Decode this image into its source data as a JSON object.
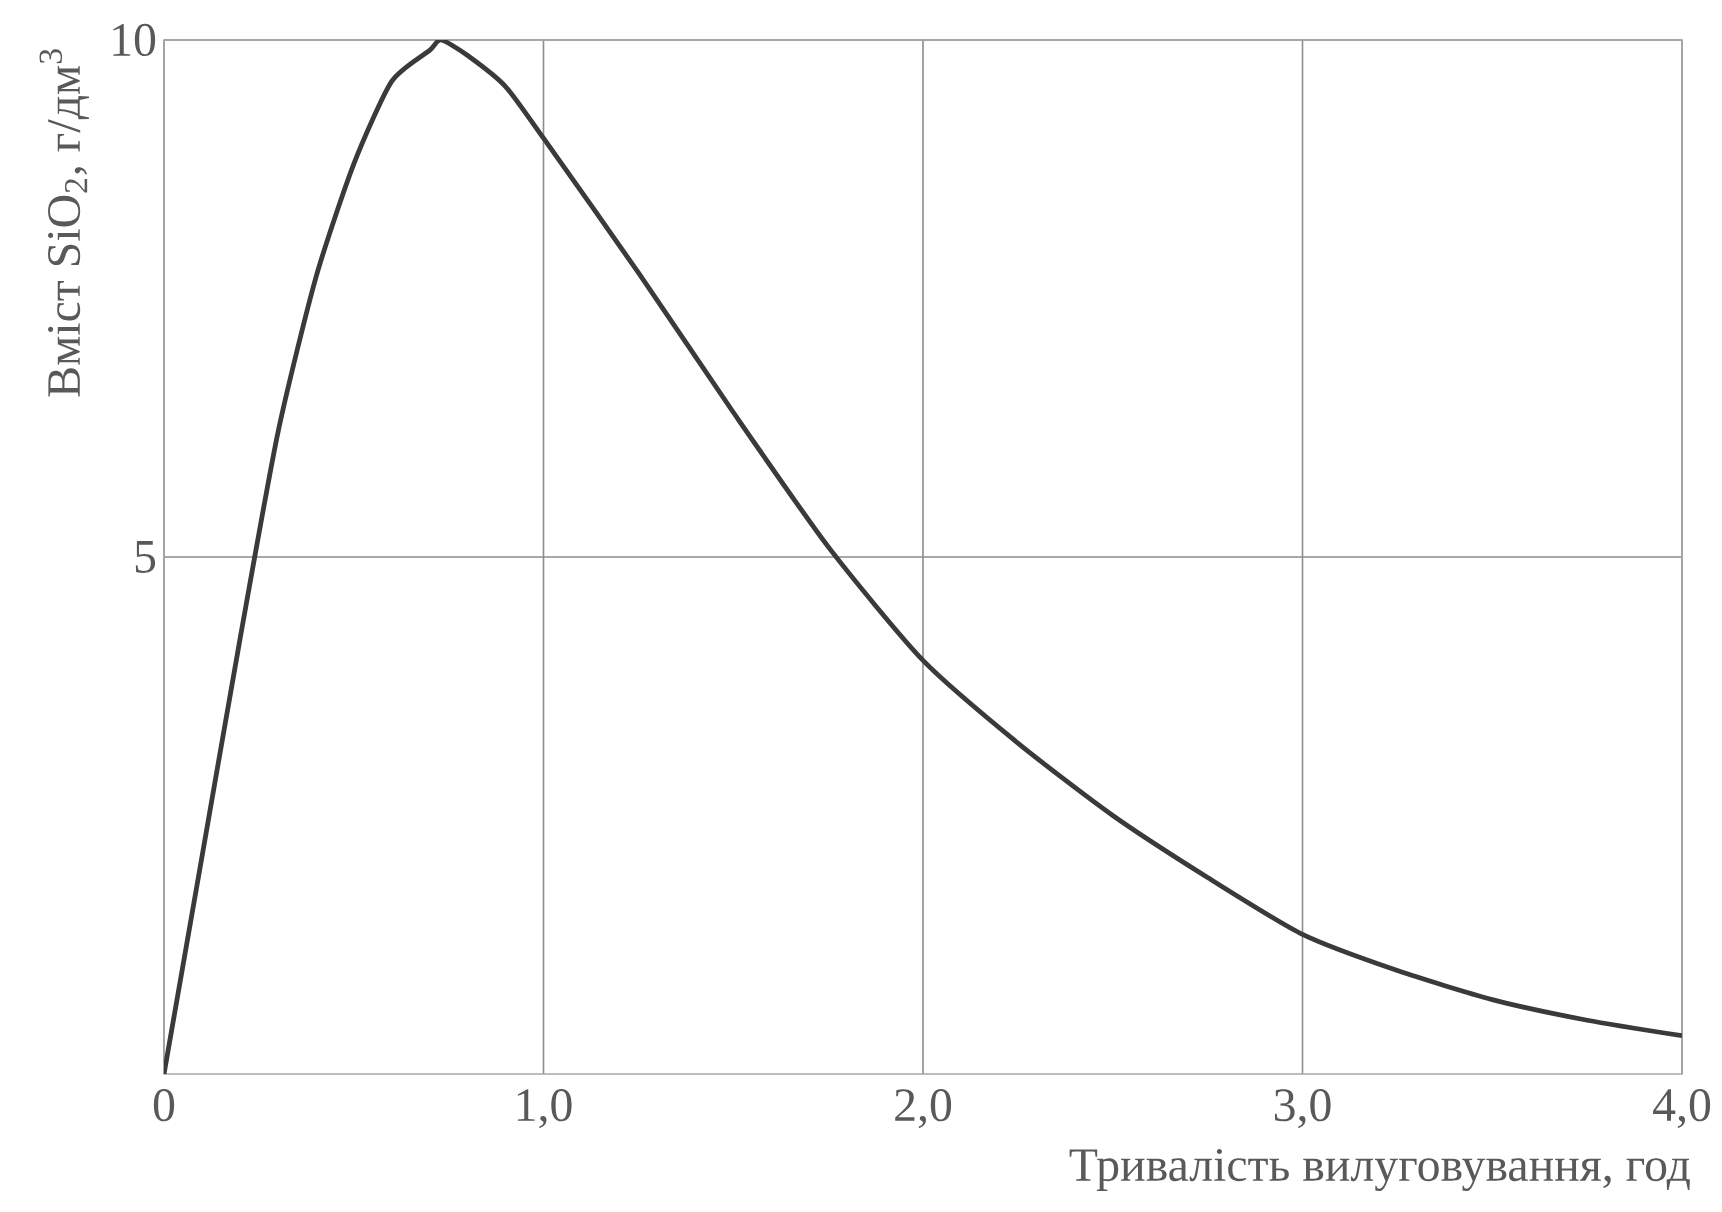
{
  "chart_data": {
    "type": "line",
    "xlabel": "Тривалість вилуговування, год",
    "ylabel": "Вміст SiO$_{2}$, г/дм$^{3}$",
    "x": [
      0,
      0.1,
      0.2,
      0.3,
      0.4,
      0.5,
      0.6,
      0.7,
      0.73,
      0.8,
      0.9,
      1.0,
      1.25,
      1.5,
      1.75,
      2.0,
      2.25,
      2.5,
      2.75,
      3.0,
      3.25,
      3.5,
      3.75,
      4.0
    ],
    "series": [
      {
        "color": "#3a3a3a",
        "values": [
          0,
          2.1,
          4.2,
          6.2,
          7.7,
          8.8,
          9.6,
          9.9,
          10.0,
          9.85,
          9.55,
          9.05,
          7.75,
          6.4,
          5.1,
          4.0,
          3.2,
          2.5,
          1.9,
          1.35,
          1.0,
          0.72,
          0.52,
          0.37
        ]
      }
    ],
    "xlim": [
      0,
      4
    ],
    "ylim": [
      0,
      10
    ],
    "xticks": [
      0,
      {
        "value": 1,
        "label": "1,0"
      },
      {
        "value": 2,
        "label": "2,0"
      },
      {
        "value": 3,
        "label": "3,0"
      },
      {
        "value": 4,
        "label": "4,0"
      }
    ],
    "yticks": [
      5,
      10
    ],
    "grid": true,
    "marker": "none",
    "line_style": "solid"
  }
}
